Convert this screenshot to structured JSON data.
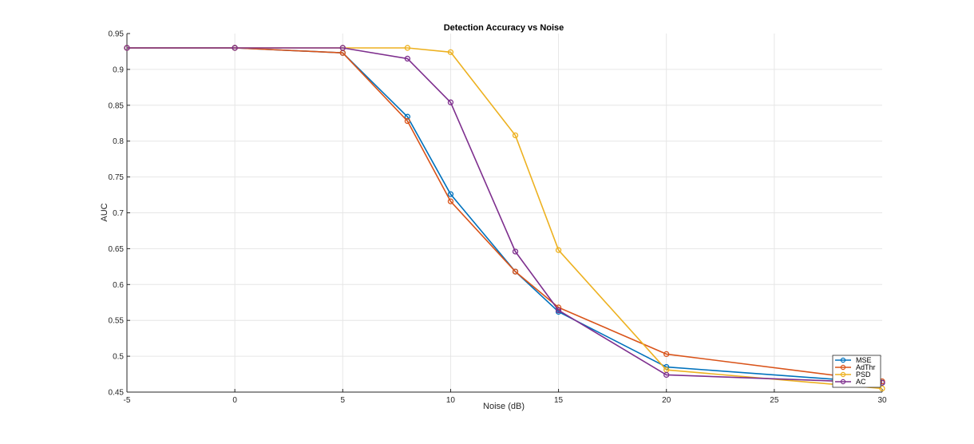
{
  "chart_data": {
    "type": "line",
    "title": "Detection Accuracy vs Noise",
    "xlabel": "Noise (dB)",
    "ylabel": "AUC",
    "xlim": [
      -5,
      30
    ],
    "ylim": [
      0.45,
      0.95
    ],
    "xticks": [
      -5,
      0,
      5,
      10,
      15,
      20,
      25,
      30
    ],
    "xtick_labels": [
      "-5",
      "0",
      "5",
      "10",
      "15",
      "20",
      "25",
      "30"
    ],
    "yticks": [
      0.45,
      0.5,
      0.55,
      0.6,
      0.65,
      0.7,
      0.75,
      0.8,
      0.85,
      0.9,
      0.95
    ],
    "ytick_labels": [
      "0.45",
      "0.5",
      "0.55",
      "0.6",
      "0.65",
      "0.7",
      "0.75",
      "0.8",
      "0.85",
      "0.9",
      "0.95"
    ],
    "grid": true,
    "legend_position": "bottom-right",
    "x": [
      -5,
      0,
      5,
      8,
      10,
      13,
      15,
      20,
      30
    ],
    "series": [
      {
        "name": "MSE",
        "color": "#0072BD",
        "values": [
          0.93,
          0.93,
          0.923,
          0.834,
          0.726,
          0.618,
          0.562,
          0.485,
          0.463
        ]
      },
      {
        "name": "AdThr",
        "color": "#D95319",
        "values": [
          0.93,
          0.93,
          0.923,
          0.828,
          0.716,
          0.618,
          0.568,
          0.503,
          0.465
        ]
      },
      {
        "name": "PSD",
        "color": "#EDB120",
        "values": [
          0.93,
          0.93,
          0.93,
          0.93,
          0.924,
          0.808,
          0.648,
          0.481,
          0.455
        ]
      },
      {
        "name": "AC",
        "color": "#7E2F8E",
        "values": [
          0.93,
          0.93,
          0.93,
          0.915,
          0.854,
          0.646,
          0.564,
          0.474,
          0.463
        ]
      }
    ]
  }
}
